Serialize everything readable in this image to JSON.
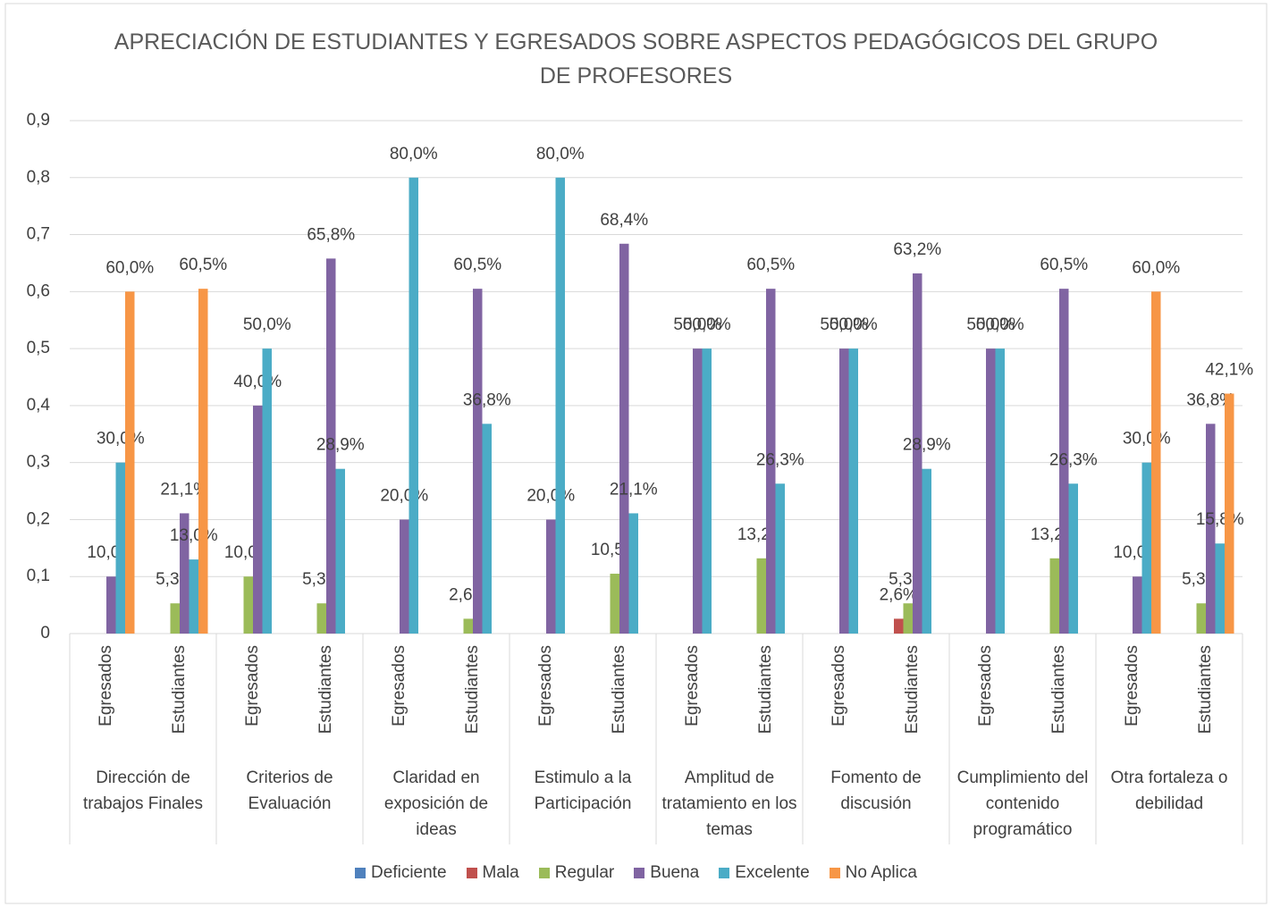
{
  "chart_data": {
    "type": "bar",
    "title": "APRECIACIÓN DE ESTUDIANTES Y EGRESADOS SOBRE ASPECTOS PEDAGÓGICOS DEL GRUPO DE PROFESORES",
    "groups": [
      "Dirección de trabajos Finales",
      "Criterios de Evaluación",
      "Claridad en exposición de ideas",
      "Estimulo a la Participación",
      "Amplitud de tratamiento en los temas",
      "Fomento de discusión",
      "Cumplimiento del contenido programático",
      "Otra fortaleza o debilidad"
    ],
    "categories": [
      "Egresados",
      "Estudiantes",
      "Egresados",
      "Estudiantes",
      "Egresados",
      "Estudiantes",
      "Egresados",
      "Estudiantes",
      "Egresados",
      "Estudiantes",
      "Egresados",
      "Estudiantes",
      "Egresados",
      "Estudiantes",
      "Egresados",
      "Estudiantes"
    ],
    "ylim": [
      0,
      0.9
    ],
    "yticks": [
      0,
      {
        "value": 0.1,
        "label": "0,1"
      },
      {
        "value": 0.2,
        "label": "0,2"
      },
      {
        "value": 0.3,
        "label": "0,3"
      },
      {
        "value": 0.4,
        "label": "0,4"
      },
      {
        "value": 0.5,
        "label": "0,5"
      },
      {
        "value": 0.6,
        "label": "0,6"
      },
      {
        "value": 0.7,
        "label": "0,7"
      },
      {
        "value": 0.8,
        "label": "0,8"
      },
      {
        "value": 0.9,
        "label": "0,9"
      }
    ],
    "grid": true,
    "legend": "bottom",
    "series": [
      {
        "name": "Deficiente",
        "color": "#4f81bd",
        "values": [
          null,
          null,
          null,
          null,
          null,
          null,
          null,
          null,
          null,
          null,
          null,
          null,
          null,
          null,
          null,
          null
        ],
        "value_labels": [
          null,
          null,
          null,
          null,
          null,
          null,
          null,
          null,
          null,
          null,
          null,
          null,
          null,
          null,
          null,
          null
        ]
      },
      {
        "name": "Mala",
        "color": "#c0504d",
        "values": [
          null,
          null,
          null,
          null,
          null,
          null,
          null,
          null,
          null,
          null,
          null,
          0.026,
          null,
          null,
          null,
          null
        ],
        "value_labels": [
          null,
          null,
          null,
          null,
          null,
          null,
          null,
          null,
          null,
          null,
          null,
          "2,6%",
          null,
          null,
          null,
          null
        ]
      },
      {
        "name": "Regular",
        "color": "#9bbb59",
        "values": [
          null,
          0.053,
          0.1,
          0.053,
          null,
          0.026,
          null,
          0.105,
          null,
          0.132,
          null,
          0.053,
          null,
          0.132,
          null,
          0.053
        ],
        "value_labels": [
          null,
          "5,3%",
          "10,0%",
          "5,3%",
          null,
          "2,6%",
          null,
          "10,5%",
          null,
          "13,2%",
          null,
          "5,3%",
          null,
          "13,2%",
          null,
          "5,3%"
        ]
      },
      {
        "name": "Buena",
        "color": "#8064a2",
        "values": [
          0.1,
          0.211,
          0.4,
          0.658,
          0.2,
          0.605,
          0.2,
          0.684,
          0.5,
          0.605,
          0.5,
          0.632,
          0.5,
          0.605,
          0.1,
          0.368
        ],
        "value_labels": [
          "10,0%",
          "21,1%",
          "40,0%",
          "65,8%",
          "20,0%",
          "60,5%",
          "20,0%",
          "68,4%",
          "50,0%",
          "60,5%",
          "50,0%",
          "63,2%",
          "50,0%",
          "60,5%",
          "10,0%",
          "36,8%"
        ]
      },
      {
        "name": "Excelente",
        "color": "#4bacc6",
        "values": [
          0.3,
          0.13,
          0.5,
          0.289,
          0.8,
          0.368,
          0.8,
          0.211,
          0.5,
          0.263,
          0.5,
          0.289,
          0.5,
          0.263,
          0.3,
          0.158
        ],
        "value_labels": [
          "30,0%",
          "13,0%",
          "50,0%",
          "28,9%",
          "80,0%",
          "36,8%",
          "80,0%",
          "21,1%",
          "50,0%",
          "26,3%",
          "50,0%",
          "28,9%",
          "50,0%",
          "26,3%",
          "30,0%",
          "15,8%"
        ]
      },
      {
        "name": "No Aplica",
        "color": "#f79646",
        "values": [
          0.6,
          0.605,
          null,
          null,
          null,
          null,
          null,
          null,
          null,
          null,
          null,
          null,
          null,
          null,
          0.6,
          0.421
        ],
        "value_labels": [
          "60,0%",
          "60,5%",
          null,
          null,
          null,
          null,
          null,
          null,
          null,
          null,
          null,
          null,
          null,
          null,
          "60,0%",
          "42,1%"
        ]
      }
    ]
  }
}
